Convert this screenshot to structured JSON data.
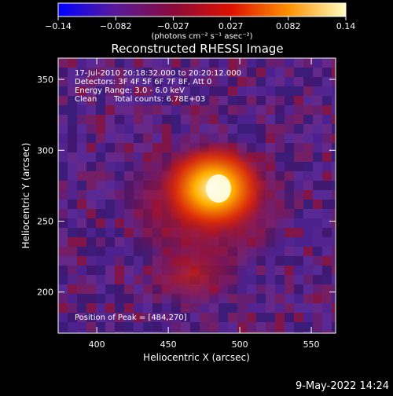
{
  "figure": {
    "title": "Reconstructed RHESSI Image",
    "footer_timestamp": "9-May-2022 14:24"
  },
  "colorbar": {
    "tick_labels": [
      "−0.14",
      "−0.082",
      "−0.027",
      "0.027",
      "0.082",
      "0.14"
    ],
    "units_label": "(photons cm⁻² s⁻¹ asec⁻²)",
    "range": [
      -0.14,
      0.14
    ],
    "colors": [
      "#0000ff",
      "#5a1a9a",
      "#8a0a3a",
      "#dd1000",
      "#ff9000",
      "#ffffc0"
    ]
  },
  "overlay": {
    "time_range": "17-Jul-2010 20:18:32.000 to 20:20:12.000",
    "detectors": "Detectors: 3F 4F 5F 6F 7F 8F, Att 0",
    "energy_range": "Energy Range: 3.0 - 6.0 keV",
    "method": "Clean",
    "total_counts": "Total counts: 6.78E+03",
    "peak_position": "Position of Peak = [484,270]"
  },
  "chart_data": {
    "type": "heatmap",
    "title": "Reconstructed RHESSI Image",
    "xlabel": "Heliocentric X (arcsec)",
    "ylabel": "Heliocentric Y (arcsec)",
    "xlim": [
      373,
      567
    ],
    "ylim": [
      171,
      365
    ],
    "x_ticks": [
      400,
      450,
      500,
      550
    ],
    "y_ticks": [
      200,
      250,
      300,
      350
    ],
    "peak": {
      "x": 484,
      "y": 270
    },
    "value_range": [
      -0.14,
      0.14
    ]
  }
}
